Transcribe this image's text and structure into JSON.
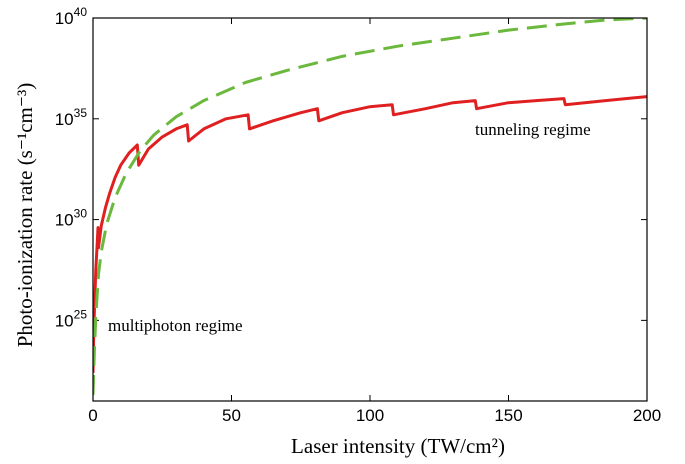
{
  "chart_data": {
    "type": "line",
    "xlabel": "Laser intensity (TW/cm²)",
    "ylabel": "Photo-ionization rate (s⁻¹cm⁻³)",
    "x_range": [
      0,
      200
    ],
    "y_range_log10": [
      21,
      40
    ],
    "y_scale": "log",
    "grid": false,
    "x_ticks": [
      "0",
      "50",
      "100",
      "150",
      "200"
    ],
    "y_ticks": [
      {
        "base": "10",
        "exp": "25"
      },
      {
        "base": "10",
        "exp": "30"
      },
      {
        "base": "10",
        "exp": "35"
      },
      {
        "base": "10",
        "exp": "40"
      }
    ],
    "annotations": [
      "multiphoton regime",
      "tunneling regime"
    ],
    "series": [
      {
        "style": "solid",
        "color": "#e02020",
        "x": [
          0,
          0.3,
          1,
          1.5,
          1.8,
          2,
          3,
          4.5,
          6,
          8,
          10,
          13,
          16,
          16.5,
          20,
          25,
          30,
          34,
          34.5,
          40,
          48,
          56,
          56.5,
          65,
          75,
          81,
          81.5,
          90,
          100,
          108,
          108.5,
          120,
          130,
          138,
          138.5,
          150,
          160,
          170,
          170.5,
          185,
          200
        ],
        "y_log10": [
          22.4,
          24.6,
          27.5,
          28.8,
          29.6,
          28.6,
          29.7,
          30.6,
          31.3,
          32.1,
          32.7,
          33.3,
          33.7,
          32.7,
          33.5,
          34.1,
          34.5,
          34.7,
          33.9,
          34.5,
          35.0,
          35.2,
          34.5,
          34.9,
          35.3,
          35.5,
          34.9,
          35.3,
          35.6,
          35.7,
          35.2,
          35.5,
          35.8,
          35.9,
          35.5,
          35.8,
          35.9,
          36.0,
          35.7,
          35.9,
          36.1
        ]
      },
      {
        "style": "dashed",
        "color": "#6ab83c",
        "x": [
          0,
          0.5,
          1,
          2,
          3,
          5,
          8,
          12,
          17,
          22,
          30,
          40,
          55,
          70,
          90,
          110,
          130,
          150,
          170,
          185,
          200
        ],
        "y_log10": [
          21.3,
          23.5,
          25.2,
          27.3,
          28.4,
          29.8,
          31.1,
          32.3,
          33.4,
          34.2,
          35.1,
          35.9,
          36.8,
          37.4,
          38.1,
          38.6,
          39.0,
          39.4,
          39.7,
          39.9,
          40.0
        ]
      }
    ]
  }
}
